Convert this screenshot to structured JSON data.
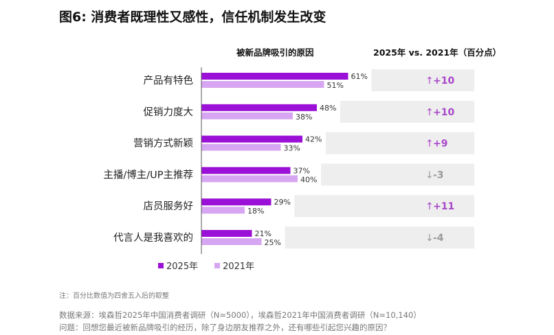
{
  "title": "图6: 消费者既理性又感性，信任机制发生改变",
  "headers": {
    "reasons": "被新品牌吸引的原因",
    "change": "2025年 vs. 2021年（百分点）"
  },
  "colors": {
    "series_2025": "#9b10d6",
    "series_2021": "#d7a6f2",
    "row_band": "#eeeeee",
    "up": "#a845c9",
    "down": "#999999"
  },
  "chart_data": {
    "type": "bar",
    "orientation": "horizontal",
    "categories": [
      "产品有特色",
      "促销力度大",
      "营销方式新颖",
      "主播/博主/UP主推荐",
      "店员服务好",
      "代言人是我喜欢的"
    ],
    "series": [
      {
        "name": "2025年",
        "values": [
          61,
          48,
          42,
          37,
          29,
          21
        ],
        "labels": [
          "61%",
          "48%",
          "42%",
          "37%",
          "29%",
          "21%"
        ]
      },
      {
        "name": "2021年",
        "values": [
          51,
          38,
          33,
          40,
          18,
          25
        ],
        "labels": [
          "51%",
          "38%",
          "33%",
          "40%",
          "18%",
          "25%"
        ]
      }
    ],
    "changes": [
      {
        "label": "+10",
        "direction": "up"
      },
      {
        "label": "+10",
        "direction": "up"
      },
      {
        "label": "+9",
        "direction": "up"
      },
      {
        "label": "-3",
        "direction": "down"
      },
      {
        "label": "+11",
        "direction": "up"
      },
      {
        "label": "-4",
        "direction": "down"
      }
    ],
    "xlim": [
      0,
      100
    ]
  },
  "legend": [
    {
      "label": "2025年"
    },
    {
      "label": "2021年"
    }
  ],
  "footnote": "注：百分比数值为四舍五入后的取整",
  "source_line1": "数据来源：埃森哲2025年中国消费者调研（N=5000），埃森哲2021年中国消费者调研（N=10,140）",
  "source_line2": "问题：回想您最近被新品牌吸引的经历，除了身边朋友推荐之外，还有哪些引起您兴趣的原因？"
}
